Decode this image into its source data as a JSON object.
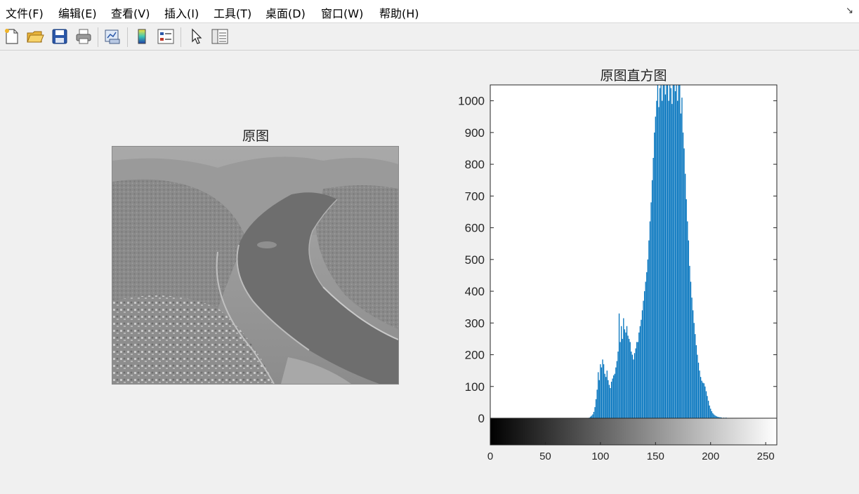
{
  "menubar": {
    "items": [
      {
        "label": "文件(F)"
      },
      {
        "label": "编辑(E)"
      },
      {
        "label": "查看(V)"
      },
      {
        "label": "插入(I)"
      },
      {
        "label": "工具(T)"
      },
      {
        "label": "桌面(D)"
      },
      {
        "label": "窗口(W)"
      },
      {
        "label": "帮助(H)"
      }
    ],
    "dock_arrow": "↘"
  },
  "toolbar": {
    "buttons": [
      "new-figure",
      "open-file",
      "save",
      "print",
      "link-plot",
      "insert-colorbar",
      "insert-legend",
      "edit-plot",
      "property-inspector"
    ]
  },
  "image_panel": {
    "title": "原图"
  },
  "chart_data": {
    "type": "bar",
    "title": "原图直方图",
    "xlabel": "",
    "ylabel": "",
    "xlim": [
      0,
      255
    ],
    "ylim": [
      0,
      1050
    ],
    "xticks": [
      0,
      50,
      100,
      150,
      200,
      250
    ],
    "yticks": [
      0,
      100,
      200,
      300,
      400,
      500,
      600,
      700,
      800,
      900,
      1000
    ],
    "bar_color": "#0072bd",
    "colorbar": "gray",
    "bins": [
      {
        "x": 90,
        "y": 2
      },
      {
        "x": 91,
        "y": 5
      },
      {
        "x": 92,
        "y": 8
      },
      {
        "x": 93,
        "y": 12
      },
      {
        "x": 94,
        "y": 20
      },
      {
        "x": 95,
        "y": 35
      },
      {
        "x": 96,
        "y": 60
      },
      {
        "x": 97,
        "y": 90
      },
      {
        "x": 98,
        "y": 145
      },
      {
        "x": 99,
        "y": 120
      },
      {
        "x": 100,
        "y": 170
      },
      {
        "x": 101,
        "y": 160
      },
      {
        "x": 102,
        "y": 185
      },
      {
        "x": 103,
        "y": 170
      },
      {
        "x": 104,
        "y": 140
      },
      {
        "x": 105,
        "y": 130
      },
      {
        "x": 106,
        "y": 150
      },
      {
        "x": 107,
        "y": 120
      },
      {
        "x": 108,
        "y": 105
      },
      {
        "x": 109,
        "y": 95
      },
      {
        "x": 110,
        "y": 115
      },
      {
        "x": 111,
        "y": 125
      },
      {
        "x": 112,
        "y": 135
      },
      {
        "x": 113,
        "y": 140
      },
      {
        "x": 114,
        "y": 160
      },
      {
        "x": 115,
        "y": 180
      },
      {
        "x": 116,
        "y": 210
      },
      {
        "x": 117,
        "y": 330
      },
      {
        "x": 118,
        "y": 240
      },
      {
        "x": 119,
        "y": 290
      },
      {
        "x": 120,
        "y": 250
      },
      {
        "x": 121,
        "y": 315
      },
      {
        "x": 122,
        "y": 280
      },
      {
        "x": 123,
        "y": 270
      },
      {
        "x": 124,
        "y": 290
      },
      {
        "x": 125,
        "y": 260
      },
      {
        "x": 126,
        "y": 250
      },
      {
        "x": 127,
        "y": 240
      },
      {
        "x": 128,
        "y": 210
      },
      {
        "x": 129,
        "y": 200
      },
      {
        "x": 130,
        "y": 185
      },
      {
        "x": 131,
        "y": 205
      },
      {
        "x": 132,
        "y": 220
      },
      {
        "x": 133,
        "y": 240
      },
      {
        "x": 134,
        "y": 240
      },
      {
        "x": 135,
        "y": 270
      },
      {
        "x": 136,
        "y": 290
      },
      {
        "x": 137,
        "y": 310
      },
      {
        "x": 138,
        "y": 340
      },
      {
        "x": 139,
        "y": 370
      },
      {
        "x": 140,
        "y": 400
      },
      {
        "x": 141,
        "y": 430
      },
      {
        "x": 142,
        "y": 460
      },
      {
        "x": 143,
        "y": 500
      },
      {
        "x": 144,
        "y": 560
      },
      {
        "x": 145,
        "y": 620
      },
      {
        "x": 146,
        "y": 680
      },
      {
        "x": 147,
        "y": 750
      },
      {
        "x": 148,
        "y": 820
      },
      {
        "x": 149,
        "y": 900
      },
      {
        "x": 150,
        "y": 950
      },
      {
        "x": 151,
        "y": 1000
      },
      {
        "x": 152,
        "y": 1050
      },
      {
        "x": 153,
        "y": 980
      },
      {
        "x": 154,
        "y": 1040
      },
      {
        "x": 155,
        "y": 1050
      },
      {
        "x": 156,
        "y": 1000
      },
      {
        "x": 157,
        "y": 1050
      },
      {
        "x": 158,
        "y": 1050
      },
      {
        "x": 159,
        "y": 1020
      },
      {
        "x": 160,
        "y": 1050
      },
      {
        "x": 161,
        "y": 1050
      },
      {
        "x": 162,
        "y": 1000
      },
      {
        "x": 163,
        "y": 1050
      },
      {
        "x": 164,
        "y": 1040
      },
      {
        "x": 165,
        "y": 990
      },
      {
        "x": 166,
        "y": 1050
      },
      {
        "x": 167,
        "y": 1050
      },
      {
        "x": 168,
        "y": 1030
      },
      {
        "x": 169,
        "y": 1050
      },
      {
        "x": 170,
        "y": 1000
      },
      {
        "x": 171,
        "y": 1050
      },
      {
        "x": 172,
        "y": 1050
      },
      {
        "x": 173,
        "y": 960
      },
      {
        "x": 174,
        "y": 1010
      },
      {
        "x": 175,
        "y": 900
      },
      {
        "x": 176,
        "y": 850
      },
      {
        "x": 177,
        "y": 770
      },
      {
        "x": 178,
        "y": 690
      },
      {
        "x": 179,
        "y": 620
      },
      {
        "x": 180,
        "y": 560
      },
      {
        "x": 181,
        "y": 480
      },
      {
        "x": 182,
        "y": 430
      },
      {
        "x": 183,
        "y": 380
      },
      {
        "x": 184,
        "y": 340
      },
      {
        "x": 185,
        "y": 300
      },
      {
        "x": 186,
        "y": 265
      },
      {
        "x": 187,
        "y": 230
      },
      {
        "x": 188,
        "y": 200
      },
      {
        "x": 189,
        "y": 175
      },
      {
        "x": 190,
        "y": 150
      },
      {
        "x": 191,
        "y": 130
      },
      {
        "x": 192,
        "y": 118
      },
      {
        "x": 193,
        "y": 112
      },
      {
        "x": 194,
        "y": 110
      },
      {
        "x": 195,
        "y": 100
      },
      {
        "x": 196,
        "y": 85
      },
      {
        "x": 197,
        "y": 70
      },
      {
        "x": 198,
        "y": 55
      },
      {
        "x": 199,
        "y": 40
      },
      {
        "x": 200,
        "y": 30
      },
      {
        "x": 201,
        "y": 22
      },
      {
        "x": 202,
        "y": 16
      },
      {
        "x": 203,
        "y": 12
      },
      {
        "x": 204,
        "y": 9
      },
      {
        "x": 205,
        "y": 7
      },
      {
        "x": 206,
        "y": 5
      },
      {
        "x": 207,
        "y": 4
      },
      {
        "x": 208,
        "y": 3
      },
      {
        "x": 209,
        "y": 3
      },
      {
        "x": 210,
        "y": 2
      },
      {
        "x": 212,
        "y": 2
      },
      {
        "x": 214,
        "y": 2
      },
      {
        "x": 216,
        "y": 1
      },
      {
        "x": 218,
        "y": 1
      },
      {
        "x": 220,
        "y": 1
      },
      {
        "x": 222,
        "y": 1
      },
      {
        "x": 225,
        "y": 1
      }
    ]
  }
}
